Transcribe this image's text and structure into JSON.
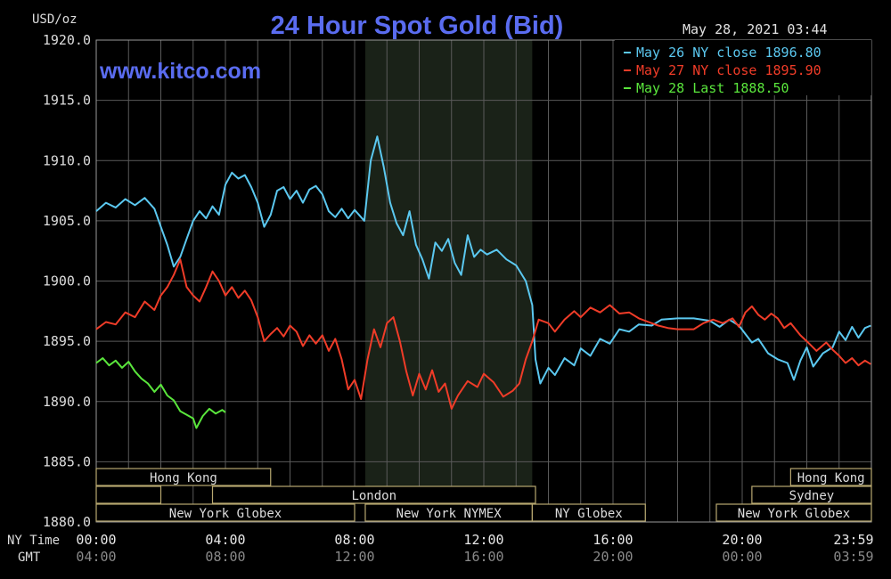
{
  "chart_data": {
    "type": "line",
    "title": "24 Hour Spot Gold (Bid)",
    "website": "www.kitco.com",
    "timestamp": "May 28, 2021 03:44",
    "ylabel": "USD/oz",
    "ylim": [
      1880,
      1920
    ],
    "y_ticks": [
      "1920.0",
      "1915.0",
      "1910.0",
      "1905.0",
      "1900.0",
      "1895.0",
      "1890.0",
      "1885.0",
      "1880.0"
    ],
    "x_label_ny": "NY Time",
    "x_label_gmt": "GMT",
    "x_ticks_ny": [
      "00:00",
      "04:00",
      "08:00",
      "12:00",
      "16:00",
      "20:00",
      "23:59"
    ],
    "x_ticks_gmt": [
      "04:00",
      "08:00",
      "12:00",
      "16:00",
      "20:00",
      "00:00",
      "03:59"
    ],
    "grid": true,
    "legend_position": "top-right",
    "highlight_band": {
      "start_hour": 8.33,
      "end_hour": 13.5,
      "color": "#1a2218"
    },
    "series": [
      {
        "name": "May 26 NY close 1896.80",
        "color": "#5bc8f0",
        "points": [
          [
            0,
            1905.8
          ],
          [
            0.3,
            1906.5
          ],
          [
            0.6,
            1906.1
          ],
          [
            0.9,
            1906.8
          ],
          [
            1.2,
            1906.3
          ],
          [
            1.5,
            1906.9
          ],
          [
            1.8,
            1906.0
          ],
          [
            2.0,
            1904.5
          ],
          [
            2.2,
            1903.0
          ],
          [
            2.4,
            1901.2
          ],
          [
            2.6,
            1902.0
          ],
          [
            2.8,
            1903.5
          ],
          [
            3.0,
            1905.0
          ],
          [
            3.2,
            1905.8
          ],
          [
            3.4,
            1905.2
          ],
          [
            3.6,
            1906.2
          ],
          [
            3.8,
            1905.5
          ],
          [
            4.0,
            1908.0
          ],
          [
            4.2,
            1909.0
          ],
          [
            4.4,
            1908.5
          ],
          [
            4.6,
            1908.8
          ],
          [
            4.8,
            1907.8
          ],
          [
            5.0,
            1906.5
          ],
          [
            5.2,
            1904.5
          ],
          [
            5.4,
            1905.5
          ],
          [
            5.6,
            1907.5
          ],
          [
            5.8,
            1907.8
          ],
          [
            6.0,
            1906.8
          ],
          [
            6.2,
            1907.5
          ],
          [
            6.4,
            1906.5
          ],
          [
            6.6,
            1907.6
          ],
          [
            6.8,
            1907.9
          ],
          [
            7.0,
            1907.2
          ],
          [
            7.2,
            1905.8
          ],
          [
            7.4,
            1905.3
          ],
          [
            7.6,
            1906.0
          ],
          [
            7.8,
            1905.2
          ],
          [
            8.0,
            1905.9
          ],
          [
            8.3,
            1905.0
          ],
          [
            8.5,
            1910.0
          ],
          [
            8.7,
            1912.0
          ],
          [
            8.9,
            1909.5
          ],
          [
            9.1,
            1906.5
          ],
          [
            9.3,
            1904.8
          ],
          [
            9.5,
            1903.8
          ],
          [
            9.7,
            1905.8
          ],
          [
            9.9,
            1903.0
          ],
          [
            10.1,
            1901.8
          ],
          [
            10.3,
            1900.2
          ],
          [
            10.5,
            1903.2
          ],
          [
            10.7,
            1902.5
          ],
          [
            10.9,
            1903.5
          ],
          [
            11.1,
            1901.5
          ],
          [
            11.3,
            1900.5
          ],
          [
            11.5,
            1903.8
          ],
          [
            11.7,
            1902.0
          ],
          [
            11.9,
            1902.6
          ],
          [
            12.1,
            1902.2
          ],
          [
            12.4,
            1902.6
          ],
          [
            12.7,
            1901.8
          ],
          [
            13.0,
            1901.3
          ],
          [
            13.3,
            1900.0
          ],
          [
            13.5,
            1898.0
          ],
          [
            13.6,
            1893.5
          ],
          [
            13.75,
            1891.5
          ],
          [
            14.0,
            1892.8
          ],
          [
            14.2,
            1892.2
          ],
          [
            14.5,
            1893.6
          ],
          [
            14.8,
            1893.0
          ],
          [
            15.0,
            1894.4
          ],
          [
            15.3,
            1893.8
          ],
          [
            15.6,
            1895.2
          ],
          [
            15.9,
            1894.8
          ],
          [
            16.2,
            1896.0
          ],
          [
            16.5,
            1895.8
          ],
          [
            16.8,
            1896.4
          ],
          [
            17.2,
            1896.3
          ],
          [
            17.5,
            1896.8
          ],
          [
            18.0,
            1896.9
          ],
          [
            18.5,
            1896.9
          ],
          [
            19.0,
            1896.7
          ],
          [
            19.3,
            1896.2
          ],
          [
            19.6,
            1896.8
          ],
          [
            19.9,
            1896.3
          ],
          [
            20.1,
            1895.6
          ],
          [
            20.3,
            1894.9
          ],
          [
            20.5,
            1895.2
          ],
          [
            20.8,
            1894.0
          ],
          [
            21.1,
            1893.5
          ],
          [
            21.4,
            1893.2
          ],
          [
            21.6,
            1891.8
          ],
          [
            21.8,
            1893.4
          ],
          [
            22.0,
            1894.5
          ],
          [
            22.2,
            1892.9
          ],
          [
            22.5,
            1894.0
          ],
          [
            22.8,
            1894.5
          ],
          [
            23.0,
            1895.8
          ],
          [
            23.2,
            1895.1
          ],
          [
            23.4,
            1896.2
          ],
          [
            23.6,
            1895.3
          ],
          [
            23.8,
            1896.1
          ],
          [
            23.98,
            1896.3
          ]
        ]
      },
      {
        "name": "May 27 NY close 1895.90",
        "color": "#f03c28",
        "points": [
          [
            0,
            1896.0
          ],
          [
            0.3,
            1896.6
          ],
          [
            0.6,
            1896.4
          ],
          [
            0.9,
            1897.4
          ],
          [
            1.2,
            1897.0
          ],
          [
            1.5,
            1898.3
          ],
          [
            1.8,
            1897.6
          ],
          [
            2.0,
            1898.8
          ],
          [
            2.2,
            1899.5
          ],
          [
            2.4,
            1900.5
          ],
          [
            2.6,
            1901.8
          ],
          [
            2.8,
            1899.5
          ],
          [
            3.0,
            1898.8
          ],
          [
            3.2,
            1898.3
          ],
          [
            3.4,
            1899.5
          ],
          [
            3.6,
            1900.8
          ],
          [
            3.8,
            1900.0
          ],
          [
            4.0,
            1898.8
          ],
          [
            4.2,
            1899.5
          ],
          [
            4.4,
            1898.6
          ],
          [
            4.6,
            1899.2
          ],
          [
            4.8,
            1898.4
          ],
          [
            5.0,
            1897.0
          ],
          [
            5.2,
            1895.0
          ],
          [
            5.4,
            1895.6
          ],
          [
            5.6,
            1896.1
          ],
          [
            5.8,
            1895.4
          ],
          [
            6.0,
            1896.3
          ],
          [
            6.2,
            1895.8
          ],
          [
            6.4,
            1894.6
          ],
          [
            6.6,
            1895.5
          ],
          [
            6.8,
            1894.8
          ],
          [
            7.0,
            1895.5
          ],
          [
            7.2,
            1894.2
          ],
          [
            7.4,
            1895.2
          ],
          [
            7.6,
            1893.5
          ],
          [
            7.8,
            1891.0
          ],
          [
            8.0,
            1891.8
          ],
          [
            8.2,
            1890.2
          ],
          [
            8.4,
            1893.5
          ],
          [
            8.6,
            1896.0
          ],
          [
            8.8,
            1894.5
          ],
          [
            9.0,
            1896.5
          ],
          [
            9.2,
            1897.0
          ],
          [
            9.4,
            1895.0
          ],
          [
            9.6,
            1892.5
          ],
          [
            9.8,
            1890.5
          ],
          [
            10.0,
            1892.3
          ],
          [
            10.2,
            1891.0
          ],
          [
            10.4,
            1892.6
          ],
          [
            10.6,
            1890.8
          ],
          [
            10.8,
            1891.5
          ],
          [
            11.0,
            1889.4
          ],
          [
            11.2,
            1890.5
          ],
          [
            11.5,
            1891.7
          ],
          [
            11.8,
            1891.2
          ],
          [
            12.0,
            1892.3
          ],
          [
            12.3,
            1891.6
          ],
          [
            12.6,
            1890.4
          ],
          [
            12.9,
            1890.9
          ],
          [
            13.1,
            1891.5
          ],
          [
            13.3,
            1893.5
          ],
          [
            13.5,
            1895.0
          ],
          [
            13.7,
            1896.8
          ],
          [
            14.0,
            1896.5
          ],
          [
            14.2,
            1895.8
          ],
          [
            14.5,
            1896.8
          ],
          [
            14.8,
            1897.5
          ],
          [
            15.0,
            1897.0
          ],
          [
            15.3,
            1897.8
          ],
          [
            15.6,
            1897.4
          ],
          [
            15.9,
            1898.0
          ],
          [
            16.2,
            1897.3
          ],
          [
            16.5,
            1897.4
          ],
          [
            16.8,
            1896.9
          ],
          [
            17.1,
            1896.6
          ],
          [
            17.4,
            1896.3
          ],
          [
            17.7,
            1896.1
          ],
          [
            18.0,
            1896.0
          ],
          [
            18.5,
            1896.0
          ],
          [
            18.8,
            1896.5
          ],
          [
            19.1,
            1896.8
          ],
          [
            19.4,
            1896.5
          ],
          [
            19.7,
            1896.9
          ],
          [
            19.9,
            1896.2
          ],
          [
            20.1,
            1897.4
          ],
          [
            20.3,
            1897.9
          ],
          [
            20.5,
            1897.2
          ],
          [
            20.7,
            1896.8
          ],
          [
            20.9,
            1897.3
          ],
          [
            21.1,
            1896.9
          ],
          [
            21.3,
            1896.1
          ],
          [
            21.5,
            1896.5
          ],
          [
            21.8,
            1895.5
          ],
          [
            22.0,
            1895.0
          ],
          [
            22.3,
            1894.2
          ],
          [
            22.6,
            1894.9
          ],
          [
            22.8,
            1894.3
          ],
          [
            23.0,
            1893.8
          ],
          [
            23.2,
            1893.2
          ],
          [
            23.4,
            1893.6
          ],
          [
            23.6,
            1893.0
          ],
          [
            23.8,
            1893.4
          ],
          [
            23.98,
            1893.1
          ]
        ]
      },
      {
        "name": "May 28 Last 1888.50",
        "color": "#5ae63c",
        "points": [
          [
            0,
            1893.2
          ],
          [
            0.2,
            1893.6
          ],
          [
            0.4,
            1893.0
          ],
          [
            0.6,
            1893.4
          ],
          [
            0.8,
            1892.8
          ],
          [
            1.0,
            1893.3
          ],
          [
            1.2,
            1892.5
          ],
          [
            1.4,
            1891.9
          ],
          [
            1.6,
            1891.5
          ],
          [
            1.8,
            1890.8
          ],
          [
            2.0,
            1891.4
          ],
          [
            2.2,
            1890.5
          ],
          [
            2.4,
            1890.1
          ],
          [
            2.6,
            1889.2
          ],
          [
            2.8,
            1888.9
          ],
          [
            3.0,
            1888.6
          ],
          [
            3.1,
            1887.8
          ],
          [
            3.3,
            1888.8
          ],
          [
            3.5,
            1889.4
          ],
          [
            3.7,
            1889.0
          ],
          [
            3.9,
            1889.3
          ],
          [
            4.0,
            1889.1
          ]
        ]
      }
    ],
    "session_bars": [
      {
        "label": "Hong Kong",
        "row": 0,
        "start": 0,
        "end": 5.4
      },
      {
        "label": "",
        "row": 1,
        "start": 0,
        "end": 2.0
      },
      {
        "label": "London",
        "row": 1,
        "start": 3.6,
        "end": 13.6
      },
      {
        "label": "New York Globex",
        "row": 2,
        "start": 0,
        "end": 8.0
      },
      {
        "label": "New York NYMEX",
        "row": 2,
        "start": 8.33,
        "end": 13.5
      },
      {
        "label": "NY Globex",
        "row": 2,
        "start": 13.5,
        "end": 17.0
      },
      {
        "label": "New York Globex",
        "row": 2,
        "start": 19.2,
        "end": 24.0
      },
      {
        "label": "Sydney",
        "row": 1,
        "start": 20.3,
        "end": 24.0
      },
      {
        "label": "Hong Kong",
        "row": 0,
        "start": 21.5,
        "end": 24.0
      }
    ]
  }
}
